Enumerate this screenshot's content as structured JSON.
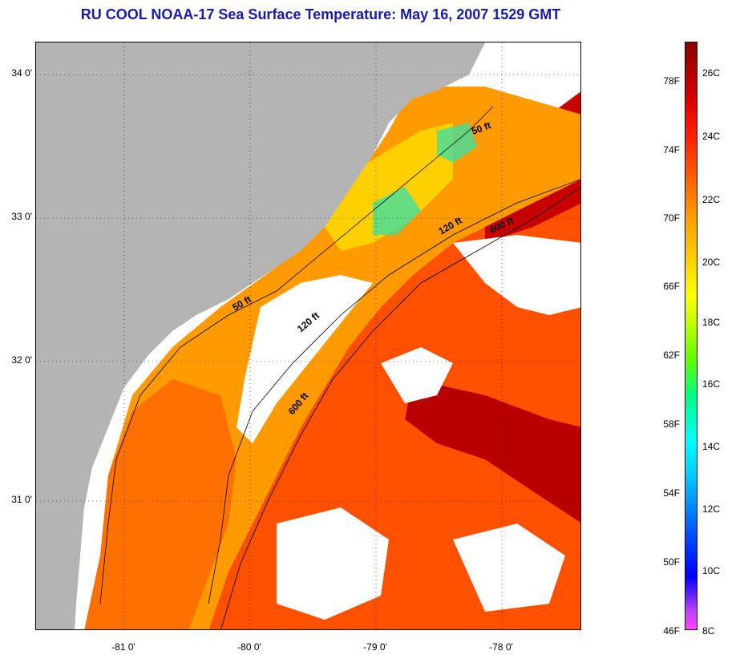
{
  "title": "RU COOL  NOAA-17  Sea Surface Temperature:  May 16, 2007 1529 GMT",
  "map": {
    "lat_labels": [
      "34 0'",
      "33 0'",
      "32 0'",
      "31 0'"
    ],
    "lon_labels": [
      "-81 0'",
      "-80 0'",
      "-79 0'",
      "-78 0'"
    ],
    "contours": [
      "50 ft",
      "120 ft",
      "600 ft",
      "50 ft",
      "120 ft",
      "600 ft"
    ],
    "colors": {
      "land": "#b4b4b4",
      "cloud": "#ffffff",
      "warm": "#ff5a00",
      "warmest": "#b80000",
      "shelf": "#ffa000",
      "nearshore": "#ffc800",
      "cool": "#40e0a0"
    }
  },
  "colorbar": {
    "fahrenheit": [
      "78F",
      "74F",
      "70F",
      "66F",
      "62F",
      "58F",
      "54F",
      "50F",
      "46F"
    ],
    "celsius": [
      "26C",
      "24C",
      "22C",
      "20C",
      "18C",
      "16C",
      "14C",
      "12C",
      "10C",
      "8C"
    ]
  }
}
